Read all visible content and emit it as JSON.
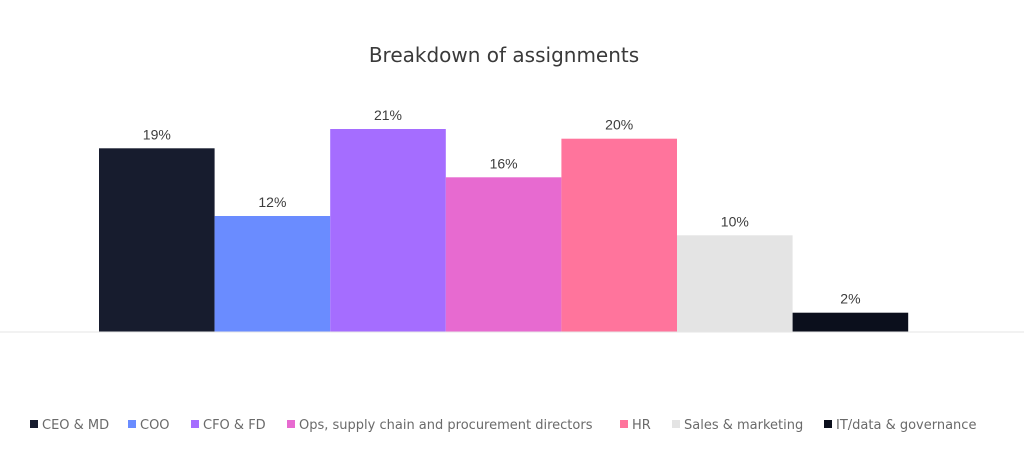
{
  "chart_data": {
    "type": "bar",
    "title": "Breakdown of assignments",
    "xlabel": "",
    "ylabel": "",
    "ylim": [
      0,
      21
    ],
    "grid": false,
    "legend_position": "bottom",
    "categories": [
      "CEO & MD",
      "COO",
      "CFO & FD",
      "Ops, supply chain and procurement directors",
      "HR",
      "Sales & marketing",
      "IT/data & governance"
    ],
    "values": [
      19,
      12,
      21,
      16,
      20,
      10,
      2
    ],
    "value_labels": [
      "19%",
      "12%",
      "21%",
      "16%",
      "20%",
      "10%",
      "2%"
    ],
    "colors": [
      "#171c2e",
      "#6a8cff",
      "#a56dff",
      "#e76ad0",
      "#ff749c",
      "#e4e4e4",
      "#0b0f1c"
    ],
    "axis_color": "#e6e6e6"
  }
}
